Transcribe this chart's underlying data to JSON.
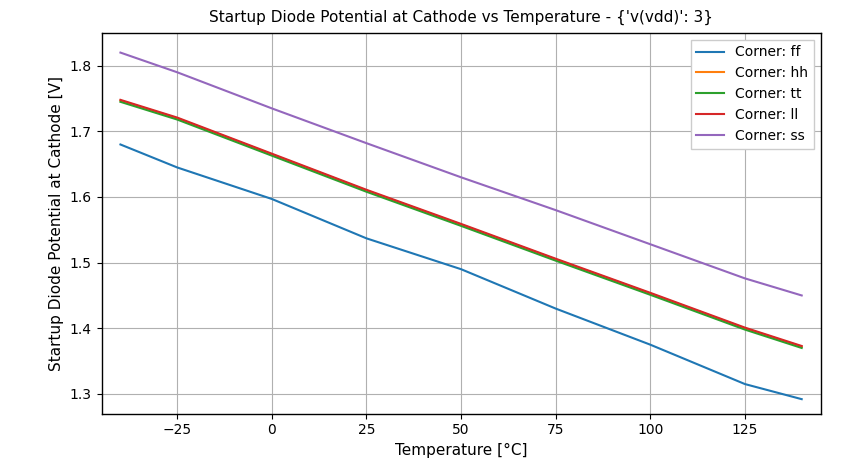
{
  "title": "Startup Diode Potential at Cathode vs Temperature - {'v(vdd)': 3}",
  "xlabel": "Temperature [°C]",
  "ylabel": "Startup Diode Potential at Cathode [V]",
  "x": [
    -40,
    -25,
    0,
    25,
    50,
    75,
    100,
    125,
    140
  ],
  "series": [
    {
      "label": "Corner: ff",
      "color": "#1f77b4",
      "y": [
        1.68,
        1.645,
        1.597,
        1.537,
        1.49,
        1.43,
        1.375,
        1.315,
        1.292
      ]
    },
    {
      "label": "Corner: hh",
      "color": "#ff7f0e",
      "y": [
        1.747,
        1.72,
        1.665,
        1.61,
        1.558,
        1.505,
        1.453,
        1.4,
        1.372
      ]
    },
    {
      "label": "Corner: tt",
      "color": "#2ca02c",
      "y": [
        1.745,
        1.718,
        1.663,
        1.608,
        1.556,
        1.503,
        1.451,
        1.398,
        1.37
      ]
    },
    {
      "label": "Corner: ll",
      "color": "#d62728",
      "y": [
        1.748,
        1.721,
        1.666,
        1.611,
        1.559,
        1.506,
        1.454,
        1.401,
        1.373
      ]
    },
    {
      "label": "Corner: ss",
      "color": "#9467bd",
      "y": [
        1.82,
        1.79,
        1.735,
        1.682,
        1.63,
        1.58,
        1.528,
        1.476,
        1.45
      ]
    }
  ],
  "xlim": [
    -45,
    145
  ],
  "ylim": [
    1.27,
    1.85
  ],
  "xticks": [
    -25,
    0,
    25,
    50,
    75,
    100,
    125
  ],
  "yticks": [
    1.3,
    1.4,
    1.5,
    1.6,
    1.7,
    1.8
  ],
  "grid": true,
  "legend_loc": "upper right",
  "figsize": [
    8.46,
    4.7
  ],
  "dpi": 100,
  "bg_color": "#ffffff",
  "axes_bg_color": "#ffffff",
  "grid_color": "#b0b0b0",
  "grid_linewidth": 0.8,
  "line_linewidth": 1.5,
  "title_fontsize": 11,
  "label_fontsize": 11,
  "tick_fontsize": 10,
  "legend_fontsize": 10
}
